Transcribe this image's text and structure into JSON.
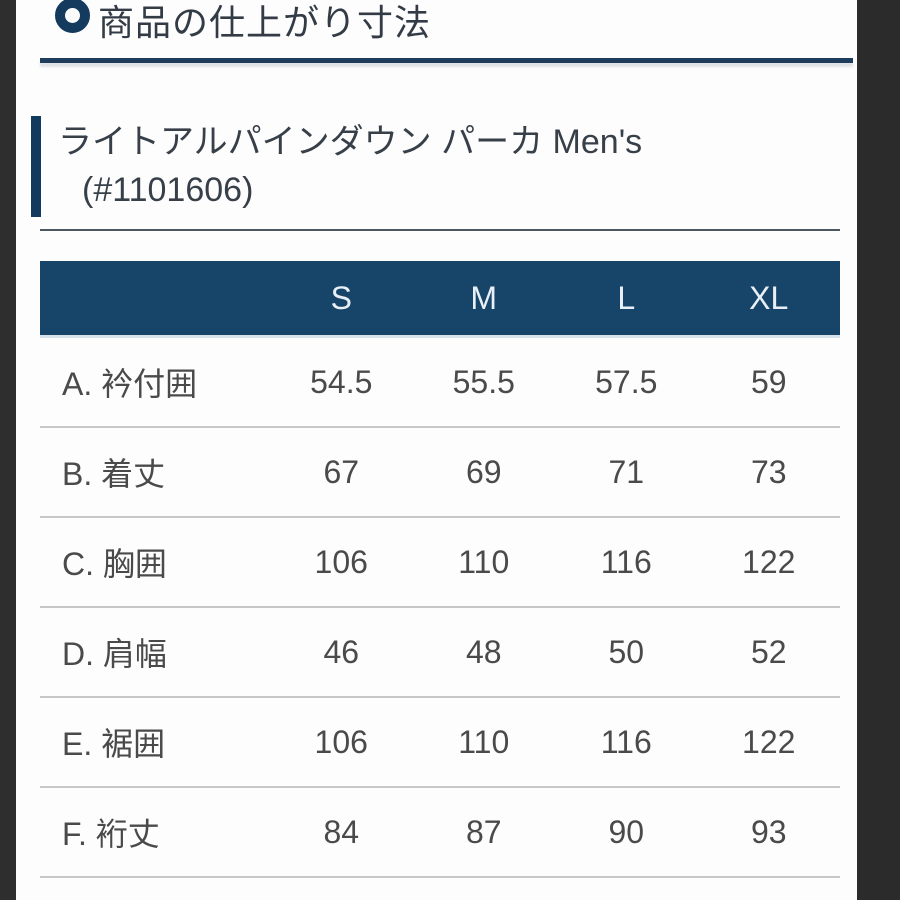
{
  "colors": {
    "navy_header": "#174569",
    "accent_bar": "#12395e",
    "frame_strip": "#2c2c2c",
    "divider": "#c7c7c7"
  },
  "header": {
    "title": "商品の仕上がり寸法",
    "icon": "circle-ring-icon"
  },
  "product": {
    "name": "ライトアルパインダウン パーカ Men's",
    "number": "(#1101606)"
  },
  "table": {
    "columns": [
      "S",
      "M",
      "L",
      "XL"
    ],
    "rows": [
      {
        "label": "A. 衿付囲",
        "values": [
          "54.5",
          "55.5",
          "57.5",
          "59"
        ]
      },
      {
        "label": "B. 着丈",
        "values": [
          "67",
          "69",
          "71",
          "73"
        ]
      },
      {
        "label": "C. 胸囲",
        "values": [
          "106",
          "110",
          "116",
          "122"
        ]
      },
      {
        "label": "D. 肩幅",
        "values": [
          "46",
          "48",
          "50",
          "52"
        ]
      },
      {
        "label": "E. 裾囲",
        "values": [
          "106",
          "110",
          "116",
          "122"
        ]
      },
      {
        "label": "F. 裄丈",
        "values": [
          "84",
          "87",
          "90",
          "93"
        ]
      }
    ]
  }
}
